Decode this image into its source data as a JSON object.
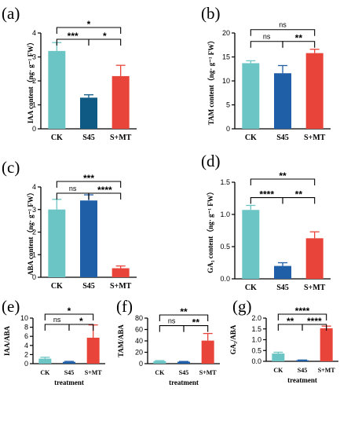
{
  "colors": {
    "CK": "#6cc5c5",
    "S45": "#1f5fa8",
    "S+MT": "#e8443a",
    "S45_dark": "#0f5a85"
  },
  "chart_data": [
    {
      "id": "a",
      "panel_label": "(a)",
      "type": "bar",
      "categories": [
        "CK",
        "S45",
        "S+MT"
      ],
      "values": [
        3.25,
        1.3,
        2.2
      ],
      "errors": [
        0.35,
        0.12,
        0.45
      ],
      "ylabel": "IAA content（ng· g⁻¹ FW）",
      "xlabel": "",
      "ylim": [
        0,
        4
      ],
      "yticks": [
        "0",
        "1",
        "2",
        "3",
        "4"
      ],
      "bar_colors": [
        "#6cc5c5",
        "#0f5a85",
        "#e8443a"
      ],
      "significance": [
        {
          "from": 0,
          "to": 1,
          "label": "***"
        },
        {
          "from": 1,
          "to": 2,
          "label": "*"
        },
        {
          "from": 0,
          "to": 2,
          "label": "*"
        }
      ]
    },
    {
      "id": "b",
      "panel_label": "(b)",
      "type": "bar",
      "categories": [
        "CK",
        "S45",
        "S+MT"
      ],
      "values": [
        13.7,
        11.6,
        15.8
      ],
      "errors": [
        0.5,
        1.6,
        0.8
      ],
      "ylabel": "TAM content（ng· g⁻¹ FW）",
      "xlabel": "",
      "ylim": [
        0,
        20
      ],
      "yticks": [
        "0",
        "5",
        "10",
        "15",
        "20"
      ],
      "bar_colors": [
        "#6cc5c5",
        "#1f5fa8",
        "#e8443a"
      ],
      "significance": [
        {
          "from": 0,
          "to": 1,
          "label": "ns"
        },
        {
          "from": 1,
          "to": 2,
          "label": "**"
        },
        {
          "from": 0,
          "to": 2,
          "label": "ns"
        }
      ]
    },
    {
      "id": "c",
      "panel_label": "(c)",
      "type": "bar",
      "categories": [
        "CK",
        "S45",
        "S+MT"
      ],
      "values": [
        3.0,
        3.4,
        0.4
      ],
      "errors": [
        0.45,
        0.25,
        0.1
      ],
      "ylabel": "ABA content（ng· g⁻¹ FW）",
      "xlabel": "",
      "ylim": [
        0,
        4
      ],
      "yticks": [
        "0",
        "1",
        "2",
        "3",
        "4"
      ],
      "bar_colors": [
        "#6cc5c5",
        "#1f5fa8",
        "#e8443a"
      ],
      "significance": [
        {
          "from": 0,
          "to": 1,
          "label": "ns"
        },
        {
          "from": 1,
          "to": 2,
          "label": "****"
        },
        {
          "from": 0,
          "to": 2,
          "label": "***"
        }
      ]
    },
    {
      "id": "d",
      "panel_label": "(d)",
      "type": "bar",
      "categories": [
        "CK",
        "S45",
        "S+MT"
      ],
      "values": [
        1.07,
        0.2,
        0.63
      ],
      "errors": [
        0.07,
        0.05,
        0.1
      ],
      "ylabel": "GA₃ content（ng· g⁻¹ FW）",
      "xlabel": "",
      "ylim": [
        0,
        1.5
      ],
      "yticks": [
        "0.0",
        "0.5",
        "1.0",
        "1.5"
      ],
      "bar_colors": [
        "#6cc5c5",
        "#1f5fa8",
        "#e8443a"
      ],
      "significance": [
        {
          "from": 0,
          "to": 1,
          "label": "****"
        },
        {
          "from": 1,
          "to": 2,
          "label": "**"
        },
        {
          "from": 0,
          "to": 2,
          "label": "**"
        }
      ]
    },
    {
      "id": "e",
      "panel_label": "(e)",
      "type": "bar",
      "categories": [
        "CK",
        "S45",
        "S+MT"
      ],
      "values": [
        1.1,
        0.4,
        5.7
      ],
      "errors": [
        0.3,
        0.1,
        2.8
      ],
      "ylabel": "IAA/ABA",
      "xlabel": "treatment",
      "ylim": [
        0,
        10
      ],
      "yticks": [
        "0",
        "2",
        "4",
        "6",
        "8",
        "10"
      ],
      "bar_colors": [
        "#6cc5c5",
        "#1f5fa8",
        "#e8443a"
      ],
      "significance": [
        {
          "from": 0,
          "to": 1,
          "label": "ns"
        },
        {
          "from": 1,
          "to": 2,
          "label": "*"
        },
        {
          "from": 0,
          "to": 2,
          "label": "*"
        }
      ]
    },
    {
      "id": "f",
      "panel_label": "(f)",
      "type": "bar",
      "categories": [
        "CK",
        "S45",
        "S+MT"
      ],
      "values": [
        4.5,
        3.4,
        40.5
      ],
      "errors": [
        0.8,
        0.5,
        12.5
      ],
      "ylabel": "TAM/ABA",
      "xlabel": "treatment",
      "ylim": [
        0,
        80
      ],
      "yticks": [
        "0",
        "20",
        "40",
        "60",
        "80"
      ],
      "bar_colors": [
        "#6cc5c5",
        "#1f5fa8",
        "#e8443a"
      ],
      "significance": [
        {
          "from": 0,
          "to": 1,
          "label": "ns"
        },
        {
          "from": 1,
          "to": 2,
          "label": "**"
        },
        {
          "from": 0,
          "to": 2,
          "label": "**"
        }
      ]
    },
    {
      "id": "g",
      "panel_label": "(g)",
      "type": "bar",
      "categories": [
        "CK",
        "S45",
        "S+MT"
      ],
      "values": [
        0.36,
        0.05,
        1.53
      ],
      "errors": [
        0.06,
        0.01,
        0.1
      ],
      "ylabel": "GA₃/ABA",
      "xlabel": "treatment",
      "ylim": [
        0,
        2.0
      ],
      "yticks": [
        "0.0",
        "0.5",
        "1.0",
        "1.5",
        "2.0"
      ],
      "bar_colors": [
        "#6cc5c5",
        "#1f5fa8",
        "#e8443a"
      ],
      "significance": [
        {
          "from": 0,
          "to": 1,
          "label": "**"
        },
        {
          "from": 1,
          "to": 2,
          "label": "****"
        },
        {
          "from": 0,
          "to": 2,
          "label": "****"
        }
      ]
    }
  ]
}
